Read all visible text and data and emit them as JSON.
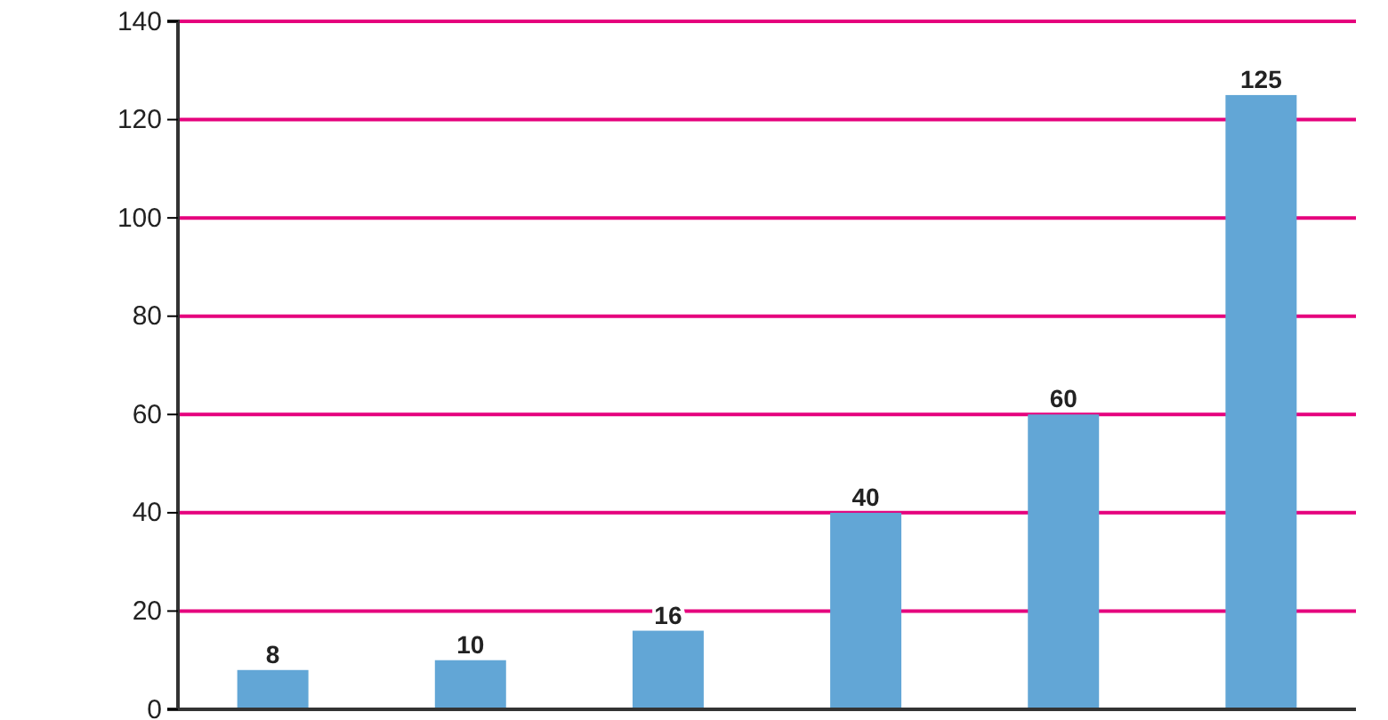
{
  "chart_data": {
    "type": "bar",
    "categories": [
      null,
      null,
      null,
      null,
      null,
      null
    ],
    "values": [
      8,
      10,
      16,
      40,
      60,
      125
    ],
    "color": "#62a6d6",
    "ylim": [
      0,
      140
    ],
    "yticks": [
      0,
      20,
      40,
      60,
      80,
      100,
      120,
      140
    ],
    "grid": "y",
    "data_labels": true
  }
}
